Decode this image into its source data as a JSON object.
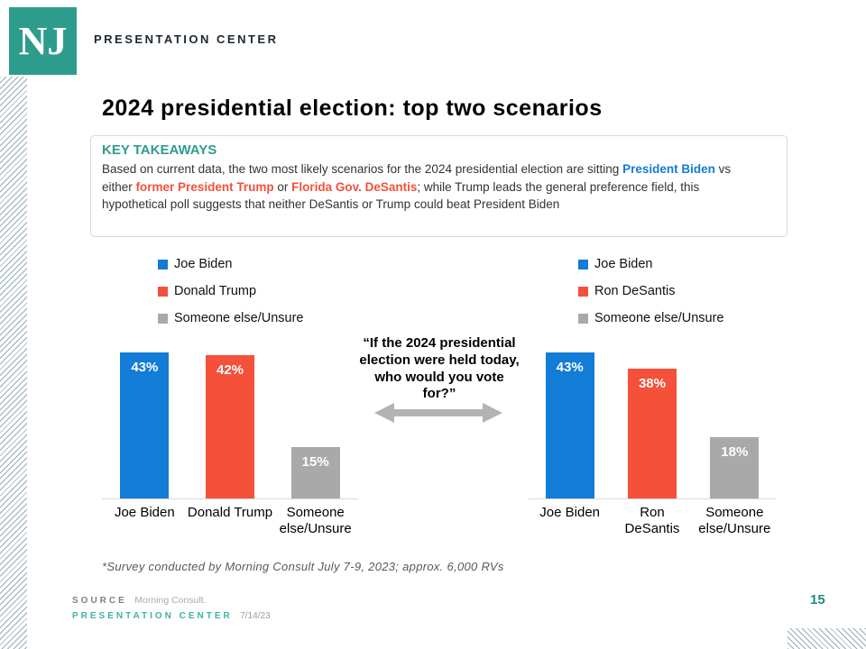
{
  "header": {
    "logo_text": "NJ",
    "brand": "PRESENTATION CENTER"
  },
  "title": "2024 presidential election: top two scenarios",
  "key_takeaways": {
    "heading": "KEY TAKEAWAYS",
    "text_part1": "Based on current data, the two most likely scenarios for the 2024 presidential election are sitting ",
    "biden_highlight": "President Biden",
    "text_part2": " vs either ",
    "trump_highlight": "former President Trump",
    "text_part3": " or ",
    "desantis_highlight": "Florida Gov. DeSantis",
    "text_part4": "; while Trump leads the general preference field, this hypothetical poll suggests that neither DeSantis or Trump could beat President Biden"
  },
  "question": "“If the 2024 presidential election were held today, who would you vote for?”",
  "footnote": "*Survey conducted by Morning Consult July 7-9, 2023; approx. 6,000 RVs",
  "footer": {
    "source_label": "SOURCE",
    "source_value": "Morning Consult.",
    "brand": "PRESENTATION CENTER",
    "date": "7/14/23",
    "page_number": "15"
  },
  "colors": {
    "accent_teal": "#2e9c8d",
    "footer_teal": "#3eb3a2",
    "biden_blue": "#127CD6",
    "republican_red": "#F4503A",
    "neutral_gray": "#A9A9A9",
    "arrow_gray": "#b3b3b3"
  },
  "chart_data": [
    {
      "type": "bar",
      "title": "Biden vs Trump scenario",
      "categories": [
        "Joe Biden",
        "Donald Trump",
        "Someone else/Unsure"
      ],
      "values": [
        43,
        42,
        15
      ],
      "labels": [
        "43%",
        "42%",
        "15%"
      ],
      "colors": [
        "#127CD6",
        "#F4503A",
        "#A9A9A9"
      ],
      "legend": [
        "Joe Biden",
        "Donald Trump",
        "Someone else/Unsure"
      ],
      "legend_position": "top-left",
      "xlabel": "",
      "ylabel": "",
      "ylim": [
        0,
        45
      ],
      "grid": false
    },
    {
      "type": "bar",
      "title": "Biden vs DeSantis scenario",
      "categories": [
        "Joe Biden",
        "Ron DeSantis",
        "Someone else/Unsure"
      ],
      "values": [
        43,
        38,
        18
      ],
      "labels": [
        "43%",
        "38%",
        "18%"
      ],
      "colors": [
        "#127CD6",
        "#F4503A",
        "#A9A9A9"
      ],
      "legend": [
        "Joe Biden",
        "Ron DeSantis",
        "Someone else/Unsure"
      ],
      "legend_position": "top-left",
      "xlabel": "",
      "ylabel": "",
      "ylim": [
        0,
        45
      ],
      "grid": false
    }
  ]
}
